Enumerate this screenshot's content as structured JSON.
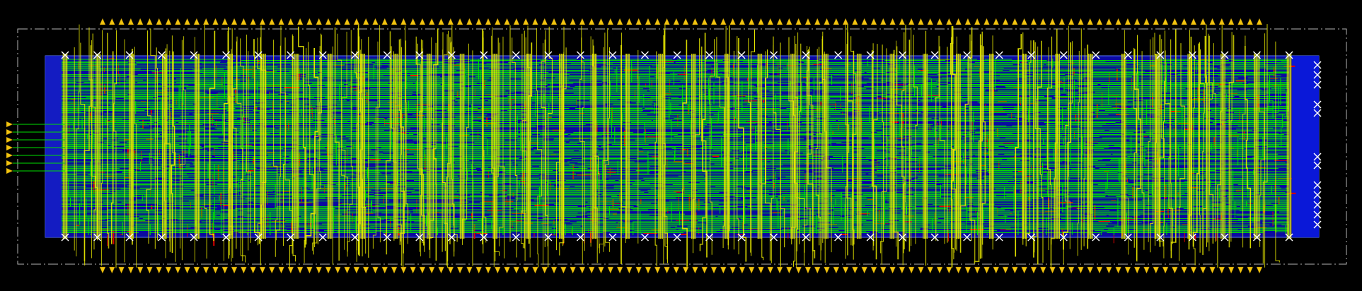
{
  "layout": {
    "background": "#000000",
    "colors": {
      "core_fill": "#0a0aa0",
      "core_edge": "#5a7aff",
      "metal_green": "#00e000",
      "metal_red": "#e00000",
      "metal_yellow": "#e6e600",
      "pin_gold": "#f2c40f",
      "boundary_dash": "#b4b4b4",
      "via_marker": "#ffffff",
      "sidebar_blue": "#0a18d8"
    },
    "pins": {
      "top_count": 124,
      "bottom_count": 124,
      "left_count": 7,
      "shape": "triangle"
    },
    "power_straps": {
      "vertical_count": 38,
      "top_markers": 39,
      "bottom_markers": 39,
      "right_markers": 12,
      "marker_icon": "x-icon"
    },
    "routing": {
      "horizontal_green_tracks": 160,
      "vertical_yellow_wires": 260,
      "red_segments": 700,
      "vertical_green_fragments": 420
    }
  }
}
